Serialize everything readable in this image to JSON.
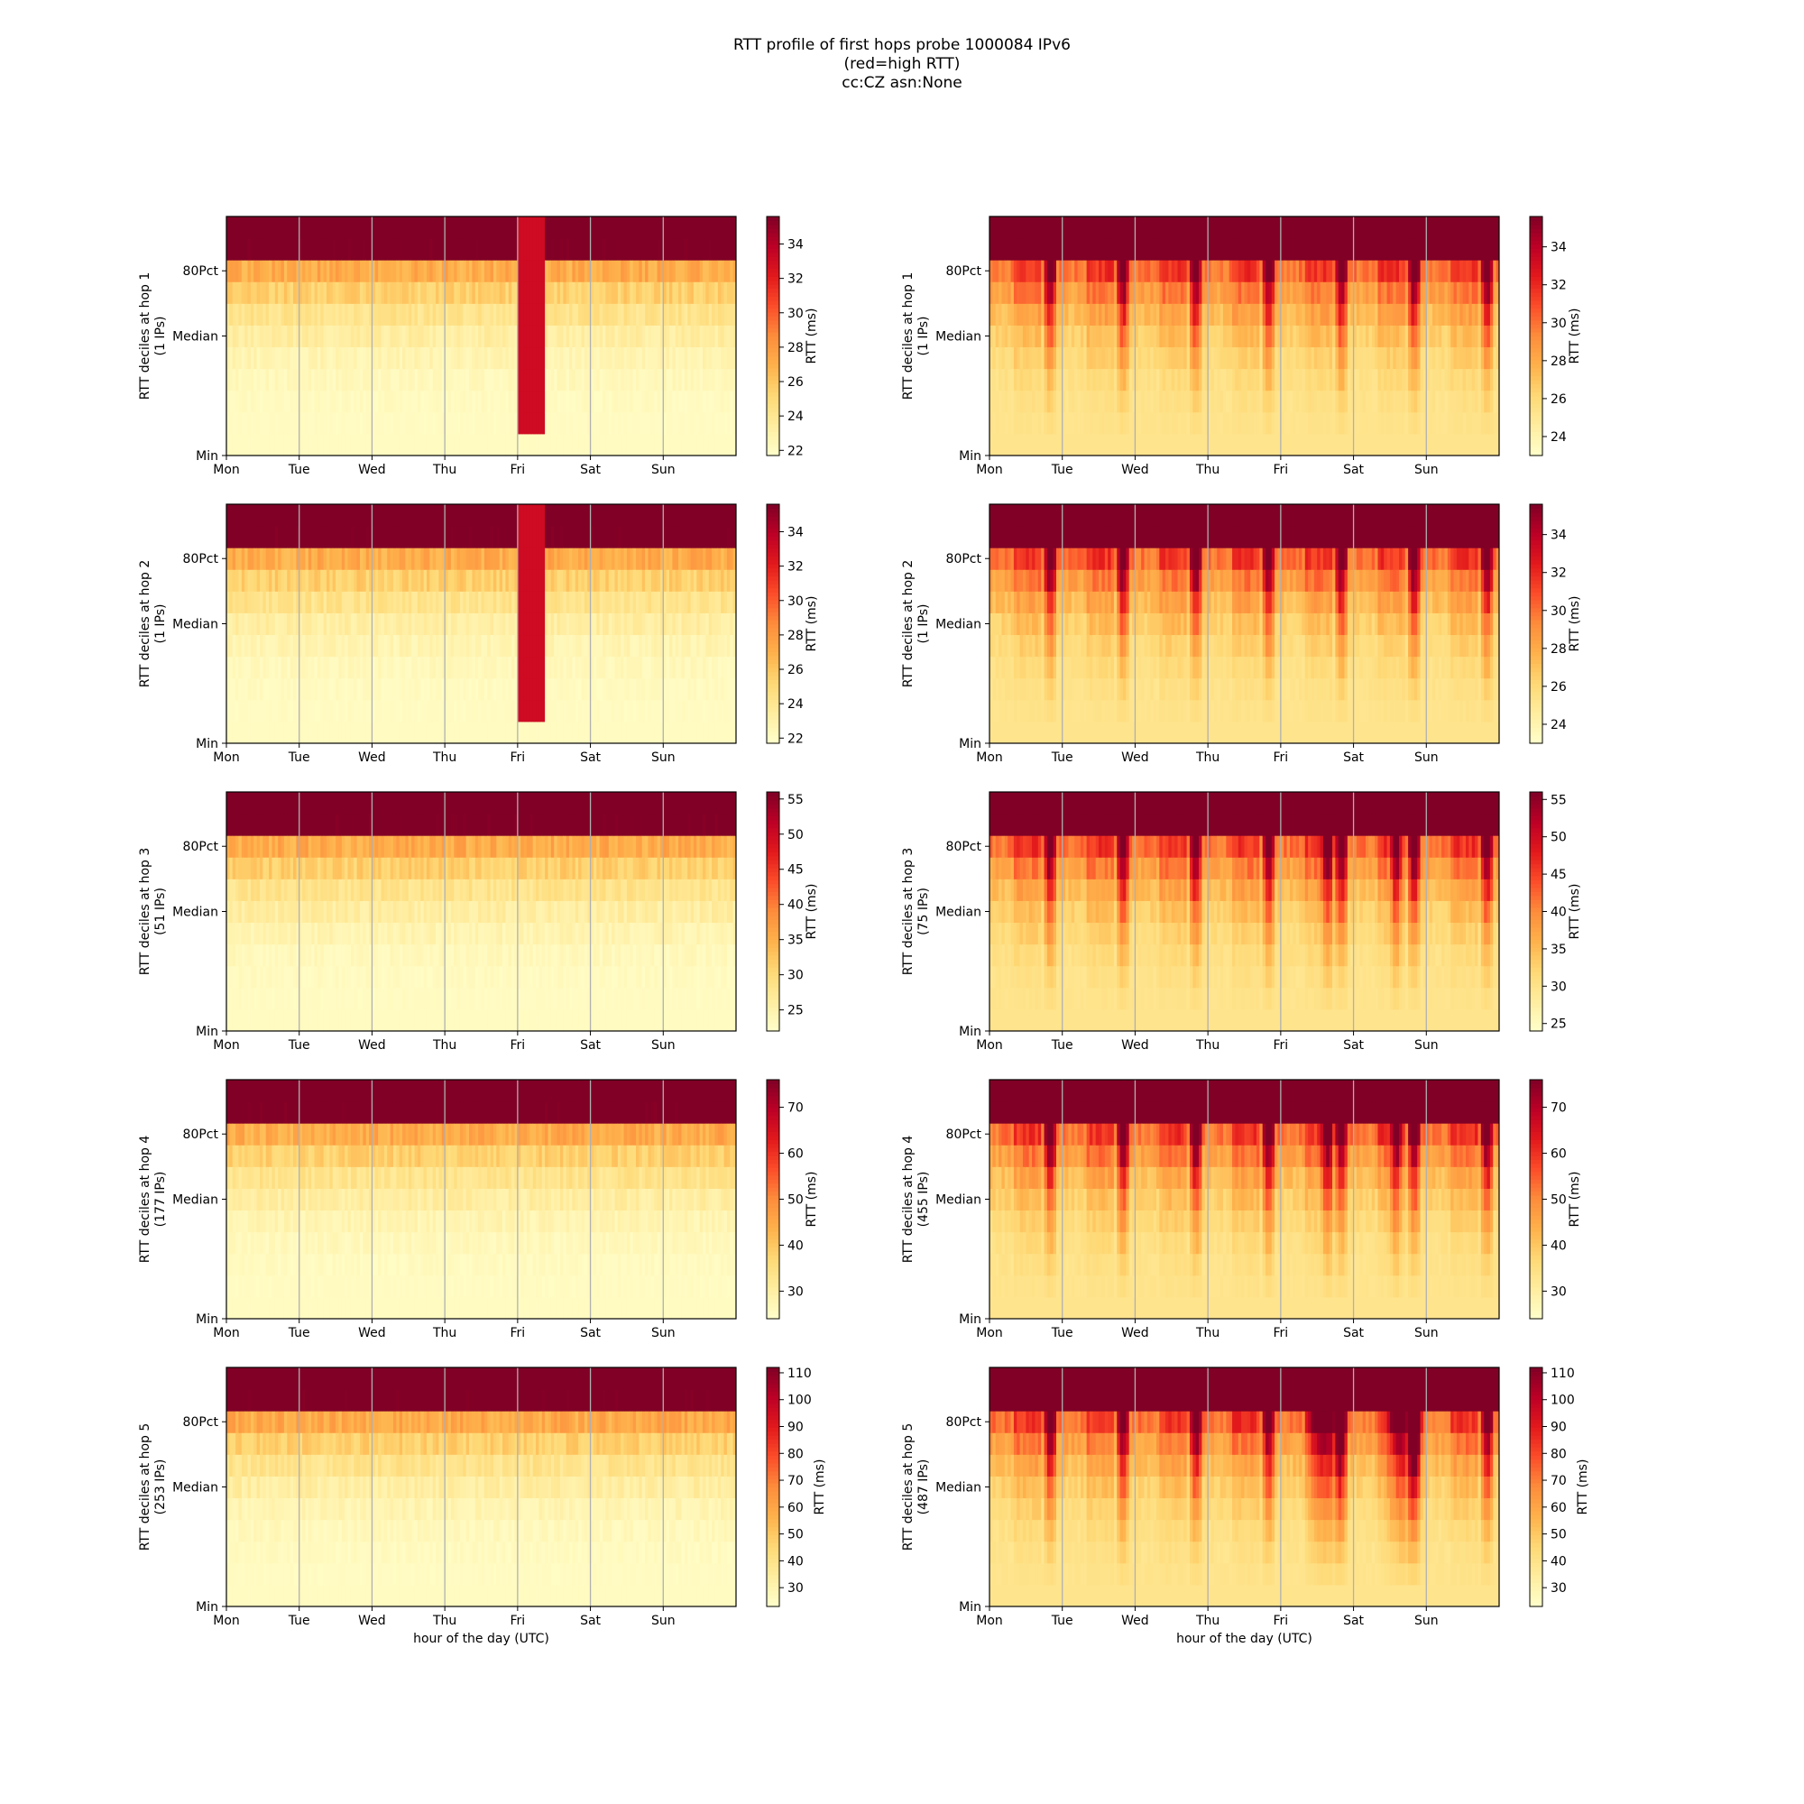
{
  "figure": {
    "title_lines": [
      "RTT profile of first hops probe 1000084 IPv6",
      "(red=high RTT)",
      "cc:CZ asn:None"
    ]
  },
  "colors": {
    "colormap": "YlOrRd",
    "grid": "#b0b0b0",
    "frame": "#000000"
  },
  "chart_data": [
    {
      "type": "heatmap",
      "ylabel": "RTT deciles at hop 1",
      "ips_label": "(1 IPs)",
      "x_ticks": [
        "Mon",
        "Tue",
        "Wed",
        "Thu",
        "Fri",
        "Sat",
        "Sun"
      ],
      "y_ticks": [
        "Min",
        "Median",
        "80Pct"
      ],
      "xlabel": "",
      "colorbar_label": "RTT (ms)",
      "colorbar_ticks": [
        22,
        24,
        26,
        28,
        30,
        32,
        34
      ],
      "vmin": 21.7,
      "vmax": 35.6,
      "pattern": "steady",
      "events": [
        [
          "Fri",
          0,
          9,
          "spike"
        ]
      ]
    },
    {
      "type": "heatmap",
      "ylabel": "RTT deciles at hop 1",
      "ips_label": "(1 IPs)",
      "x_ticks": [
        "Mon",
        "Tue",
        "Wed",
        "Thu",
        "Fri",
        "Sat",
        "Sun"
      ],
      "y_ticks": [
        "Min",
        "Median",
        "80Pct"
      ],
      "xlabel": "",
      "colorbar_label": "RTT (ms)",
      "colorbar_ticks": [
        24,
        26,
        28,
        30,
        32,
        34
      ],
      "vmin": 23.0,
      "vmax": 35.6,
      "pattern": "diurnal",
      "events": []
    },
    {
      "type": "heatmap",
      "ylabel": "RTT deciles at hop 2",
      "ips_label": "(1 IPs)",
      "x_ticks": [
        "Mon",
        "Tue",
        "Wed",
        "Thu",
        "Fri",
        "Sat",
        "Sun"
      ],
      "y_ticks": [
        "Min",
        "Median",
        "80Pct"
      ],
      "xlabel": "",
      "colorbar_label": "RTT (ms)",
      "colorbar_ticks": [
        22,
        24,
        26,
        28,
        30,
        32,
        34
      ],
      "vmin": 21.7,
      "vmax": 35.6,
      "pattern": "steady",
      "events": [
        [
          "Fri",
          0,
          9,
          "spike"
        ]
      ]
    },
    {
      "type": "heatmap",
      "ylabel": "RTT deciles at hop 2",
      "ips_label": "(1 IPs)",
      "x_ticks": [
        "Mon",
        "Tue",
        "Wed",
        "Thu",
        "Fri",
        "Sat",
        "Sun"
      ],
      "y_ticks": [
        "Min",
        "Median",
        "80Pct"
      ],
      "xlabel": "",
      "colorbar_label": "RTT (ms)",
      "colorbar_ticks": [
        24,
        26,
        28,
        30,
        32,
        34
      ],
      "vmin": 23.0,
      "vmax": 35.6,
      "pattern": "diurnal",
      "events": []
    },
    {
      "type": "heatmap",
      "ylabel": "RTT deciles at hop 3",
      "ips_label": "(51 IPs)",
      "x_ticks": [
        "Mon",
        "Tue",
        "Wed",
        "Thu",
        "Fri",
        "Sat",
        "Sun"
      ],
      "y_ticks": [
        "Min",
        "Median",
        "80Pct"
      ],
      "xlabel": "",
      "colorbar_label": "RTT (ms)",
      "colorbar_ticks": [
        25,
        30,
        35,
        40,
        45,
        50,
        55
      ],
      "vmin": 22.0,
      "vmax": 56.0,
      "pattern": "steady",
      "events": []
    },
    {
      "type": "heatmap",
      "ylabel": "RTT deciles at hop 3",
      "ips_label": "(75 IPs)",
      "x_ticks": [
        "Mon",
        "Tue",
        "Wed",
        "Thu",
        "Fri",
        "Sat",
        "Sun"
      ],
      "y_ticks": [
        "Min",
        "Median",
        "80Pct"
      ],
      "xlabel": "",
      "colorbar_label": "RTT (ms)",
      "colorbar_ticks": [
        25,
        30,
        35,
        40,
        45,
        50,
        55
      ],
      "vmin": 24.0,
      "vmax": 56.0,
      "pattern": "diurnal",
      "events": [
        [
          "Fri",
          13,
          5,
          "dip"
        ],
        [
          "Sat",
          12,
          4,
          "dip"
        ]
      ]
    },
    {
      "type": "heatmap",
      "ylabel": "RTT deciles at hop 4",
      "ips_label": "(177 IPs)",
      "x_ticks": [
        "Mon",
        "Tue",
        "Wed",
        "Thu",
        "Fri",
        "Sat",
        "Sun"
      ],
      "y_ticks": [
        "Min",
        "Median",
        "80Pct"
      ],
      "xlabel": "",
      "colorbar_label": "RTT (ms)",
      "colorbar_ticks": [
        30,
        40,
        50,
        60,
        70
      ],
      "vmin": 24.0,
      "vmax": 76.0,
      "pattern": "steady",
      "events": []
    },
    {
      "type": "heatmap",
      "ylabel": "RTT deciles at hop 4",
      "ips_label": "(455 IPs)",
      "x_ticks": [
        "Mon",
        "Tue",
        "Wed",
        "Thu",
        "Fri",
        "Sat",
        "Sun"
      ],
      "y_ticks": [
        "Min",
        "Median",
        "80Pct"
      ],
      "xlabel": "",
      "colorbar_label": "RTT (ms)",
      "colorbar_ticks": [
        30,
        40,
        50,
        60,
        70
      ],
      "vmin": 24.0,
      "vmax": 76.0,
      "pattern": "diurnal",
      "events": [
        [
          "Fri",
          13,
          5,
          "dip"
        ],
        [
          "Sat",
          12,
          4,
          "dip"
        ]
      ]
    },
    {
      "type": "heatmap",
      "ylabel": "RTT deciles at hop 5",
      "ips_label": "(253 IPs)",
      "x_ticks": [
        "Mon",
        "Tue",
        "Wed",
        "Thu",
        "Fri",
        "Sat",
        "Sun"
      ],
      "y_ticks": [
        "Min",
        "Median",
        "80Pct"
      ],
      "xlabel": "hour of the day (UTC)",
      "colorbar_label": "RTT (ms)",
      "colorbar_ticks": [
        30,
        40,
        50,
        60,
        70,
        80,
        90,
        100,
        110
      ],
      "vmin": 23.0,
      "vmax": 112.0,
      "pattern": "steady",
      "events": []
    },
    {
      "type": "heatmap",
      "ylabel": "RTT deciles at hop 5",
      "ips_label": "(487 IPs)",
      "x_ticks": [
        "Mon",
        "Tue",
        "Wed",
        "Thu",
        "Fri",
        "Sat",
        "Sun"
      ],
      "y_ticks": [
        "Min",
        "Median",
        "80Pct"
      ],
      "xlabel": "hour of the day (UTC)",
      "colorbar_label": "RTT (ms)",
      "colorbar_ticks": [
        30,
        40,
        50,
        60,
        70,
        80,
        90,
        100,
        110
      ],
      "vmin": 23.0,
      "vmax": 112.0,
      "pattern": "diurnal",
      "events": [
        [
          "Fri",
          8,
          14,
          "dip"
        ],
        [
          "Sat",
          10,
          14,
          "dip"
        ]
      ]
    }
  ]
}
